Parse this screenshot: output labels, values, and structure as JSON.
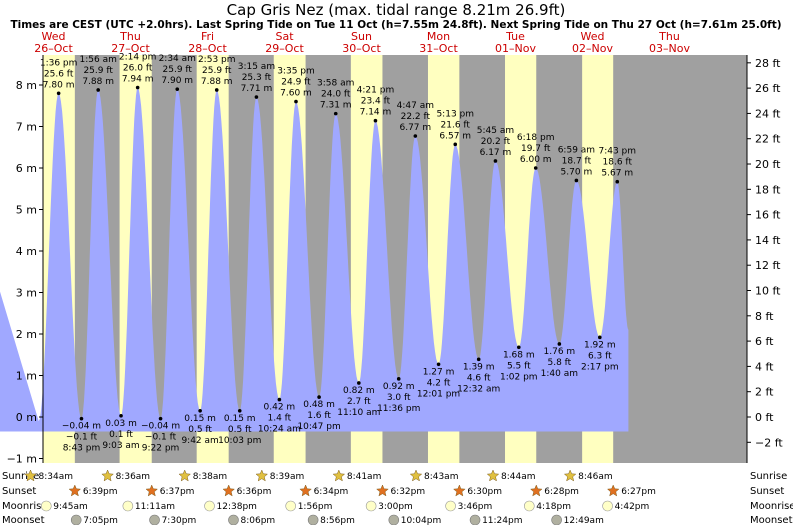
{
  "chart_data": {
    "type": "area",
    "title": "Cap Gris Nez (max. tidal range 8.21m 26.9ft)",
    "subtitle": "Times are CEST (UTC +2.0hrs). Last Spring Tide on Tue 11 Oct (h=7.55m 24.8ft). Next Spring Tide on Thu 27 Oct (h=7.61m 25.0ft)",
    "ylabel_left_unit": "m",
    "ylabel_right_unit": "ft",
    "ylim_m": [
      -1.1,
      8.6
    ],
    "left_ticks": [
      "−1 m",
      "0 m",
      "1 m",
      "2 m",
      "3 m",
      "4 m",
      "5 m",
      "6 m",
      "7 m",
      "8 m"
    ],
    "right_ticks": [
      "−2 ft",
      "0 ft",
      "2 ft",
      "4 ft",
      "6 ft",
      "8 ft",
      "10 ft",
      "12 ft",
      "14 ft",
      "16 ft",
      "18 ft",
      "20 ft",
      "22 ft",
      "24 ft",
      "26 ft",
      "28 ft"
    ],
    "days": [
      {
        "dow": "Wed",
        "date": "26–Oct"
      },
      {
        "dow": "Thu",
        "date": "27–Oct"
      },
      {
        "dow": "Fri",
        "date": "28–Oct"
      },
      {
        "dow": "Sat",
        "date": "29–Oct"
      },
      {
        "dow": "Sun",
        "date": "30–Oct"
      },
      {
        "dow": "Mon",
        "date": "31–Oct"
      },
      {
        "dow": "Tue",
        "date": "01–Nov"
      },
      {
        "dow": "Wed",
        "date": "02–Nov"
      },
      {
        "dow": "Thu",
        "date": "03–Nov"
      }
    ],
    "high_tides": [
      {
        "time": "1:36 pm",
        "ft": "25.6 ft",
        "m": "7.80 m",
        "h": 7.8
      },
      {
        "time": "1:56 am",
        "ft": "25.9 ft",
        "m": "7.88 m",
        "h": 7.88
      },
      {
        "time": "2:14 pm",
        "ft": "26.0 ft",
        "m": "7.94 m",
        "h": 7.94
      },
      {
        "time": "2:34 am",
        "ft": "25.9 ft",
        "m": "7.90 m",
        "h": 7.9
      },
      {
        "time": "2:53 pm",
        "ft": "25.9 ft",
        "m": "7.88 m",
        "h": 7.88
      },
      {
        "time": "3:15 am",
        "ft": "25.3 ft",
        "m": "7.71 m",
        "h": 7.71
      },
      {
        "time": "3:35 pm",
        "ft": "24.9 ft",
        "m": "7.60 m",
        "h": 7.6
      },
      {
        "time": "3:58 am",
        "ft": "24.0 ft",
        "m": "7.31 m",
        "h": 7.31
      },
      {
        "time": "4:21 pm",
        "ft": "23.4 ft",
        "m": "7.14 m",
        "h": 7.14
      },
      {
        "time": "4:47 am",
        "ft": "22.2 ft",
        "m": "6.77 m",
        "h": 6.77
      },
      {
        "time": "5:13 pm",
        "ft": "21.6 ft",
        "m": "6.57 m",
        "h": 6.57
      },
      {
        "time": "5:45 am",
        "ft": "20.2 ft",
        "m": "6.17 m",
        "h": 6.17
      },
      {
        "time": "6:18 pm",
        "ft": "19.7 ft",
        "m": "6.00 m",
        "h": 6.0
      },
      {
        "time": "6:59 am",
        "ft": "18.7 ft",
        "m": "5.70 m",
        "h": 5.7
      },
      {
        "time": "7:43 pm",
        "ft": "18.6 ft",
        "m": "5.67 m",
        "h": 5.67
      }
    ],
    "low_tides": [
      {
        "m": "−0.04 m",
        "ft": "−0.1 ft",
        "time": "8:43 pm",
        "h": -0.04
      },
      {
        "m": "0.03 m",
        "ft": "0.1 ft",
        "time": "9:03 am",
        "h": 0.03
      },
      {
        "m": "−0.04 m",
        "ft": "−0.1 ft",
        "time": "9:22 pm",
        "h": -0.04
      },
      {
        "m": "0.15 m",
        "ft": "0.5 ft",
        "time": "9:42 am",
        "h": 0.15
      },
      {
        "m": "0.15 m",
        "ft": "0.5 ft",
        "time": "10:03 pm",
        "h": 0.15
      },
      {
        "m": "0.42 m",
        "ft": "1.4 ft",
        "time": "10:24 am",
        "h": 0.42
      },
      {
        "m": "0.48 m",
        "ft": "1.6 ft",
        "time": "10:47 pm",
        "h": 0.48
      },
      {
        "m": "0.82 m",
        "ft": "2.7 ft",
        "time": "11:10 am",
        "h": 0.82
      },
      {
        "m": "0.92 m",
        "ft": "3.0 ft",
        "time": "11:36 pm",
        "h": 0.92
      },
      {
        "m": "1.27 m",
        "ft": "4.2 ft",
        "time": "12:01 pm",
        "h": 1.27
      },
      {
        "m": "1.39 m",
        "ft": "4.6 ft",
        "time": "12:32 am",
        "h": 1.39
      },
      {
        "m": "1.68 m",
        "ft": "5.5 ft",
        "time": "1:02 pm",
        "h": 1.68
      },
      {
        "m": "1.76 m",
        "ft": "5.8 ft",
        "time": "1:40 am",
        "h": 1.76
      },
      {
        "m": "1.92 m",
        "ft": "6.3 ft",
        "time": "2:17 pm",
        "h": 1.92
      }
    ],
    "astro_row_labels": [
      "Sunrise",
      "Sunset",
      "Moonrise",
      "Moonset"
    ],
    "sunrise": [
      "8:34am",
      "8:36am",
      "8:38am",
      "8:39am",
      "8:41am",
      "8:43am",
      "8:44am",
      "8:46am"
    ],
    "sunset": [
      "6:39pm",
      "6:37pm",
      "6:36pm",
      "6:34pm",
      "6:32pm",
      "6:30pm",
      "6:28pm",
      "6:27pm"
    ],
    "moonrise": [
      "9:45am",
      "11:11am",
      "12:38pm",
      "1:56pm",
      "3:00pm",
      "3:46pm",
      "4:18pm",
      "4:42pm"
    ],
    "moonset": [
      "7:05pm",
      "7:30pm",
      "8:06pm",
      "8:56pm",
      "10:04pm",
      "11:24pm",
      "12:49am"
    ],
    "colors": {
      "night": "#a0a0a0",
      "day": "#ffffc0",
      "water": "#a0a8ff",
      "day_label": "#cc0000",
      "sun_star": "#e0c040",
      "sunset_star": "#e07020",
      "moonrise": "#ffffc8",
      "moonset": "#b0b0a0"
    }
  }
}
